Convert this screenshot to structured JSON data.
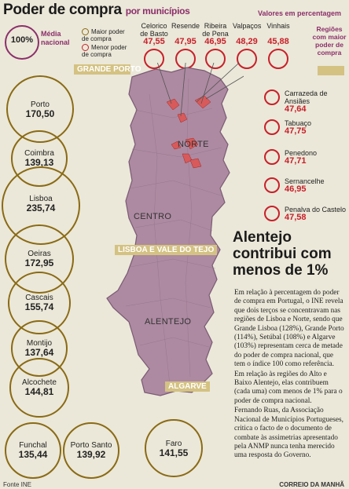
{
  "header": {
    "title": "Poder de compra",
    "subtitle": "por municípios",
    "units": "Valores em percentagem"
  },
  "legend": {
    "avg_value": "100%",
    "avg_label": "Média nacional",
    "above_label": "Maior poder de compra",
    "below_label": "Menor poder de compra",
    "regions_label": "Regiões com maior poder de compra"
  },
  "top_municipalities": [
    {
      "name": "Celorico de Basto",
      "value": "47,55"
    },
    {
      "name": "Resende",
      "value": "47,95"
    },
    {
      "name": "Ribeira de Pena",
      "value": "46,95"
    },
    {
      "name": "Valpaços",
      "value": "48,29"
    },
    {
      "name": "Vinhais",
      "value": "45,88"
    }
  ],
  "right_municipalities": [
    {
      "name": "Carrazeda de Ansiães",
      "value": "47,64"
    },
    {
      "name": "Tabuaço",
      "value": "47,75"
    },
    {
      "name": "Penedono",
      "value": "47,71"
    },
    {
      "name": "Sernancelhe",
      "value": "46,95"
    },
    {
      "name": "Penalva do Castelo",
      "value": "47,58"
    }
  ],
  "left_municipalities": [
    {
      "name": "Porto",
      "value": "170,50"
    },
    {
      "name": "Coimbra",
      "value": "139,13"
    },
    {
      "name": "Lisboa",
      "value": "235,74"
    },
    {
      "name": "Oeiras",
      "value": "172,95"
    },
    {
      "name": "Cascais",
      "value": "155,74"
    },
    {
      "name": "Montijo",
      "value": "137,64"
    },
    {
      "name": "Alcochete",
      "value": "144,81"
    },
    {
      "name": "Funchal",
      "value": "135,44"
    },
    {
      "name": "Porto Santo",
      "value": "139,92"
    },
    {
      "name": "Faro",
      "value": "141,55"
    }
  ],
  "map": {
    "tags": {
      "grande_porto": "GRANDE PORTO",
      "lisboa_tejo": "LISBOA E VALE DO TEJO",
      "algarve": "ALGARVE"
    },
    "regions": {
      "norte": "NORTE",
      "centro": "CENTRO",
      "alentejo": "ALENTEJO"
    }
  },
  "article": {
    "headline": "Alentejo contribui com menos de 1%",
    "paragraphs": [
      "Em relação à percentagem do poder de compra em Portugal, o INE revela que dois terços se concentravam nas regiões de Lisboa e Norte, sendo que Grande Lisboa (128%), Grande Porto (114%), Setúbal (108%) e Algarve (103%) representam cerca de metade do poder de compra nacional, que tem o índice 100 como referência.",
      "Em relação às regiões do Alto e Baixo Alentejo, elas contribuem (cada uma) com menos de 1% para o poder de compra nacional.",
      "Fernando Ruas, da Associação Nacional de Municípios Portugueses, critica o facto de o documento de combate às assimetrias apresentado pela ANMP nunca tenha merecido uma resposta do Governo."
    ]
  },
  "footer": {
    "source": "Fonte INE",
    "publisher": "CORREIO DA MANHÃ"
  },
  "colors": {
    "accent": "#8c2f6a",
    "low": "#c8202a",
    "high_circle": "#8a6a14",
    "map_fill": "#ad8aa1",
    "map_dark": "#7a5a74",
    "tag": "#d4c283"
  }
}
